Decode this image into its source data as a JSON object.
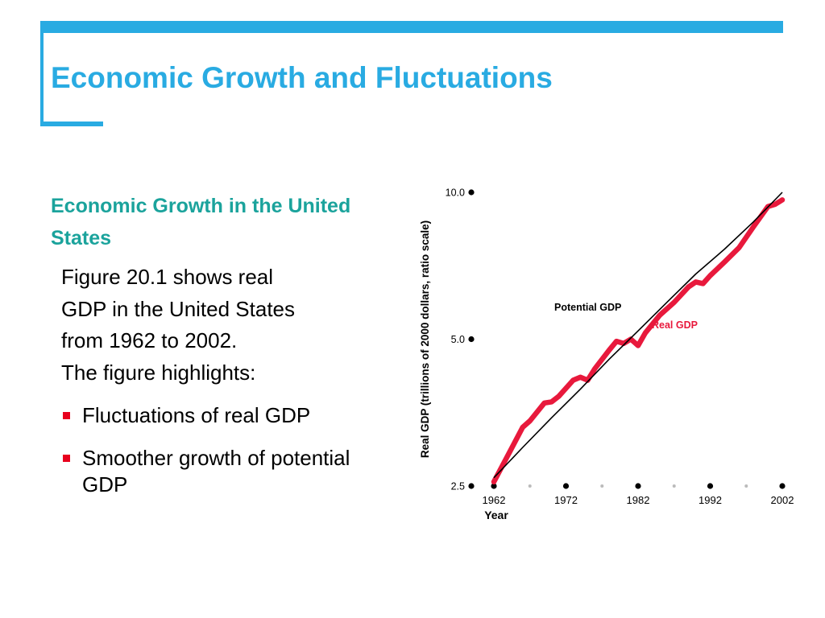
{
  "slide": {
    "title": "Economic Growth and Fluctuations",
    "subheading": "Economic Growth in the United States",
    "paragraph": [
      "Figure 20.1 shows real",
      "GDP in the United States",
      "from 1962 to 2002.",
      "The figure highlights:"
    ],
    "bullets": [
      "Fluctuations of real GDP",
      "Smoother growth of potential GDP"
    ]
  },
  "colors": {
    "accent": "#29abe2",
    "subheading": "#1ba39c",
    "bullet": "#e8001d",
    "real_gdp": "#e8193c",
    "potential_gdp": "#000000"
  },
  "chart_data": {
    "type": "line",
    "xlabel": "Year",
    "ylabel": "Real GDP (trillions of 2000 dollars, ratio scale)",
    "y_scale": "log",
    "xlim": [
      1962,
      2002
    ],
    "ylim": [
      2.5,
      10.0
    ],
    "x_ticks": [
      1962,
      1972,
      1982,
      1992,
      2002
    ],
    "x_tick_labels": [
      "1962",
      "1972",
      "1982",
      "1992",
      "2002"
    ],
    "y_ticks": [
      2.5,
      5.0,
      10.0
    ],
    "y_tick_labels": [
      "2.5",
      "5.0",
      "10.0"
    ],
    "series": [
      {
        "name": "Potential GDP",
        "color": "#000000",
        "x": [
          1962,
          1966,
          1970,
          1974,
          1978,
          1982,
          1986,
          1990,
          1994,
          1998,
          2002
        ],
        "y": [
          2.6,
          3.0,
          3.45,
          3.95,
          4.55,
          5.2,
          5.95,
          6.8,
          7.65,
          8.7,
          10.0
        ]
      },
      {
        "name": "Real GDP",
        "color": "#e8193c",
        "x": [
          1962,
          1964,
          1966,
          1967,
          1969,
          1970,
          1971,
          1973,
          1974,
          1975,
          1976,
          1978,
          1979,
          1980,
          1981,
          1982,
          1983,
          1985,
          1987,
          1989,
          1990,
          1991,
          1992,
          1994,
          1996,
          1998,
          2000,
          2001,
          2002
        ],
        "y": [
          2.55,
          2.9,
          3.3,
          3.4,
          3.7,
          3.72,
          3.82,
          4.12,
          4.18,
          4.12,
          4.35,
          4.75,
          4.95,
          4.9,
          5.0,
          4.85,
          5.15,
          5.6,
          5.95,
          6.4,
          6.55,
          6.5,
          6.75,
          7.2,
          7.7,
          8.5,
          9.35,
          9.45,
          9.65
        ]
      }
    ]
  }
}
